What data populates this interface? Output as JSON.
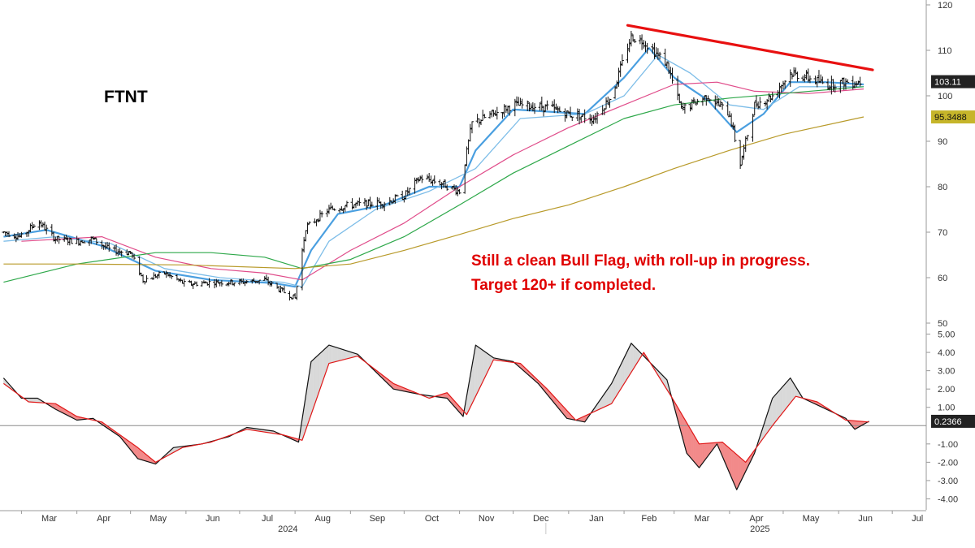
{
  "ticker": "FTNT",
  "annotation_lines": [
    "Still a clean Bull Flag, with roll-up in progress.",
    "Target 120+ if completed."
  ],
  "colors": {
    "bars": "#111111",
    "ma_fast": "#4a9fe0",
    "ma_mid": "#7dbde8",
    "ma_pink": "#e04c8a",
    "ma_green": "#2ea84a",
    "ma_olive": "#b89a2a",
    "trendline": "#e81010",
    "macd_line": "#111111",
    "signal_line": "#e01818",
    "fill_bull": "#d9d9d9",
    "fill_bear": "#f28a8a",
    "tag_price_bg": "#222222",
    "tag_ma_bg": "#c6b52a"
  },
  "chart_data": [
    {
      "type": "ohlc",
      "title": "FTNT",
      "ylim": [
        50,
        120
      ],
      "yticks": [
        50,
        60,
        70,
        80,
        90,
        100,
        110,
        120
      ],
      "x_months": [
        "Mar",
        "Apr",
        "May",
        "Jun",
        "Jul",
        "Aug",
        "Sep",
        "Oct",
        "Nov",
        "Dec",
        "Jan",
        "Feb",
        "Mar",
        "Apr",
        "May",
        "Jun",
        "Jul"
      ],
      "x_years": [
        "2024",
        "2025"
      ],
      "price_path": [
        [
          "2024-02-20",
          70
        ],
        [
          "2024-03-01",
          69
        ],
        [
          "2024-03-10",
          72.5
        ],
        [
          "2024-03-20",
          68.5
        ],
        [
          "2024-04-01",
          68
        ],
        [
          "2024-04-10",
          68.5
        ],
        [
          "2024-04-20",
          66
        ],
        [
          "2024-05-01",
          65.5
        ],
        [
          "2024-05-08",
          59.5
        ],
        [
          "2024-05-20",
          61
        ],
        [
          "2024-06-01",
          58.5
        ],
        [
          "2024-06-15",
          59
        ],
        [
          "2024-07-01",
          59
        ],
        [
          "2024-07-15",
          59.5
        ],
        [
          "2024-07-25",
          57
        ],
        [
          "2024-08-01",
          55.5
        ],
        [
          "2024-08-07",
          71
        ],
        [
          "2024-08-20",
          75
        ],
        [
          "2024-09-01",
          76
        ],
        [
          "2024-09-20",
          76.5
        ],
        [
          "2024-10-01",
          78
        ],
        [
          "2024-10-10",
          82
        ],
        [
          "2024-10-20",
          81
        ],
        [
          "2024-11-01",
          79
        ],
        [
          "2024-11-08",
          94
        ],
        [
          "2024-11-20",
          96
        ],
        [
          "2024-12-01",
          98
        ],
        [
          "2024-12-20",
          97.5
        ],
        [
          "2025-01-01",
          96
        ],
        [
          "2025-01-15",
          95
        ],
        [
          "2025-01-25",
          100
        ],
        [
          "2025-02-05",
          113
        ],
        [
          "2025-02-12",
          112
        ],
        [
          "2025-02-25",
          107
        ],
        [
          "2025-03-05",
          97
        ],
        [
          "2025-03-20",
          100
        ],
        [
          "2025-04-01",
          96
        ],
        [
          "2025-04-07",
          85
        ],
        [
          "2025-04-15",
          98
        ],
        [
          "2025-04-25",
          100
        ],
        [
          "2025-05-05",
          105
        ],
        [
          "2025-05-15",
          104
        ],
        [
          "2025-05-25",
          102.5
        ],
        [
          "2025-06-05",
          103
        ],
        [
          "2025-06-15",
          103.1
        ]
      ],
      "moving_averages": [
        {
          "style": "ma_fast",
          "points": [
            [
              "2024-02-20",
              69
            ],
            [
              "2024-03-15",
              70.5
            ],
            [
              "2024-04-15",
              67
            ],
            [
              "2024-05-15",
              61.5
            ],
            [
              "2024-06-15",
              59.5
            ],
            [
              "2024-07-20",
              58.8
            ],
            [
              "2024-08-01",
              58
            ],
            [
              "2024-08-10",
              66
            ],
            [
              "2024-08-25",
              74
            ],
            [
              "2024-09-20",
              76
            ],
            [
              "2024-10-15",
              80
            ],
            [
              "2024-11-01",
              80
            ],
            [
              "2024-11-10",
              88
            ],
            [
              "2024-12-01",
              97
            ],
            [
              "2025-01-10",
              96
            ],
            [
              "2025-02-01",
              104
            ],
            [
              "2025-02-15",
              110.5
            ],
            [
              "2025-03-01",
              104
            ],
            [
              "2025-03-20",
              99
            ],
            [
              "2025-04-05",
              92
            ],
            [
              "2025-04-20",
              96
            ],
            [
              "2025-05-05",
              103
            ],
            [
              "2025-05-25",
              103
            ],
            [
              "2025-06-15",
              102.5
            ]
          ]
        },
        {
          "style": "ma_mid",
          "points": [
            [
              "2024-02-20",
              68
            ],
            [
              "2024-03-20",
              69
            ],
            [
              "2024-04-20",
              67.5
            ],
            [
              "2024-05-20",
              62
            ],
            [
              "2024-06-20",
              60
            ],
            [
              "2024-07-25",
              59
            ],
            [
              "2024-08-05",
              58
            ],
            [
              "2024-08-20",
              68
            ],
            [
              "2024-09-15",
              75
            ],
            [
              "2024-10-15",
              79
            ],
            [
              "2024-11-10",
              84
            ],
            [
              "2024-12-05",
              95
            ],
            [
              "2025-01-10",
              96
            ],
            [
              "2025-02-01",
              100
            ],
            [
              "2025-02-20",
              109
            ],
            [
              "2025-03-10",
              105
            ],
            [
              "2025-04-01",
              98
            ],
            [
              "2025-04-20",
              97
            ],
            [
              "2025-05-10",
              102
            ],
            [
              "2025-06-15",
              102
            ]
          ]
        },
        {
          "style": "ma_pink",
          "points": [
            [
              "2024-03-01",
              68
            ],
            [
              "2024-04-15",
              69
            ],
            [
              "2024-05-15",
              64.5
            ],
            [
              "2024-06-15",
              62
            ],
            [
              "2024-07-15",
              61
            ],
            [
              "2024-08-05",
              59.5
            ],
            [
              "2024-09-01",
              66
            ],
            [
              "2024-10-01",
              72
            ],
            [
              "2024-11-01",
              80
            ],
            [
              "2024-12-01",
              87
            ],
            [
              "2025-01-01",
              93
            ],
            [
              "2025-02-01",
              98
            ],
            [
              "2025-03-01",
              102.5
            ],
            [
              "2025-03-25",
              103
            ],
            [
              "2025-04-15",
              101
            ],
            [
              "2025-05-15",
              100.5
            ],
            [
              "2025-06-15",
              101.5
            ]
          ]
        },
        {
          "style": "ma_green",
          "points": [
            [
              "2024-02-20",
              59
            ],
            [
              "2024-04-01",
              63
            ],
            [
              "2024-05-15",
              65.5
            ],
            [
              "2024-06-15",
              65.5
            ],
            [
              "2024-07-15",
              64.5
            ],
            [
              "2024-08-05",
              62
            ],
            [
              "2024-09-01",
              64
            ],
            [
              "2024-10-01",
              69
            ],
            [
              "2024-11-01",
              76
            ],
            [
              "2024-12-01",
              83
            ],
            [
              "2025-01-01",
              89
            ],
            [
              "2025-02-01",
              95
            ],
            [
              "2025-03-01",
              98
            ],
            [
              "2025-04-01",
              99.5
            ],
            [
              "2025-05-01",
              100.5
            ],
            [
              "2025-06-15",
              102
            ]
          ]
        },
        {
          "style": "ma_olive",
          "points": [
            [
              "2024-02-20",
              63
            ],
            [
              "2024-04-01",
              63
            ],
            [
              "2024-06-01",
              62.8
            ],
            [
              "2024-08-01",
              62
            ],
            [
              "2024-09-01",
              63
            ],
            [
              "2024-10-01",
              66
            ],
            [
              "2024-11-01",
              69.5
            ],
            [
              "2024-12-01",
              73
            ],
            [
              "2025-01-01",
              76
            ],
            [
              "2025-02-01",
              80
            ],
            [
              "2025-03-01",
              84
            ],
            [
              "2025-04-01",
              88
            ],
            [
              "2025-05-01",
              91.5
            ],
            [
              "2025-06-15",
              95.35
            ]
          ]
        }
      ],
      "trendline": [
        [
          "2025-02-03",
          115.5
        ],
        [
          "2025-06-20",
          105.7
        ]
      ],
      "last_price": "103.11",
      "ma_value": "95.3488"
    },
    {
      "type": "line",
      "ylim": [
        -4.6,
        5.6
      ],
      "yticks": [
        5.0,
        4.0,
        3.0,
        2.0,
        1.0,
        -1.0,
        -2.0,
        -3.0,
        -4.0
      ],
      "ytick_labels": [
        "5.00",
        "4.00",
        "3.00",
        "2.00",
        "1.00",
        "-1.00",
        "-2.00",
        "-3.00",
        "-4.00"
      ],
      "zero_line": 0,
      "series": [
        {
          "style": "macd_line",
          "points": [
            [
              "2024-02-20",
              2.6
            ],
            [
              "2024-03-01",
              1.5
            ],
            [
              "2024-03-10",
              1.5
            ],
            [
              "2024-03-20",
              0.9
            ],
            [
              "2024-04-01",
              0.3
            ],
            [
              "2024-04-10",
              0.4
            ],
            [
              "2024-04-25",
              -0.6
            ],
            [
              "2024-05-05",
              -1.8
            ],
            [
              "2024-05-15",
              -2.1
            ],
            [
              "2024-05-25",
              -1.2
            ],
            [
              "2024-06-10",
              -1.0
            ],
            [
              "2024-06-25",
              -0.6
            ],
            [
              "2024-07-05",
              -0.1
            ],
            [
              "2024-07-20",
              -0.3
            ],
            [
              "2024-08-03",
              -0.9
            ],
            [
              "2024-08-10",
              3.5
            ],
            [
              "2024-08-20",
              4.4
            ],
            [
              "2024-09-05",
              3.9
            ],
            [
              "2024-09-25",
              2.0
            ],
            [
              "2024-10-10",
              1.7
            ],
            [
              "2024-10-25",
              1.5
            ],
            [
              "2024-11-03",
              0.5
            ],
            [
              "2024-11-10",
              4.4
            ],
            [
              "2024-11-20",
              3.7
            ],
            [
              "2024-12-01",
              3.5
            ],
            [
              "2024-12-15",
              2.3
            ],
            [
              "2024-12-31",
              0.4
            ],
            [
              "2025-01-10",
              0.2
            ],
            [
              "2025-01-25",
              2.3
            ],
            [
              "2025-02-05",
              4.5
            ],
            [
              "2025-02-12",
              3.8
            ],
            [
              "2025-02-25",
              2.5
            ],
            [
              "2025-03-08",
              -1.5
            ],
            [
              "2025-03-15",
              -2.3
            ],
            [
              "2025-03-25",
              -1.0
            ],
            [
              "2025-04-05",
              -3.5
            ],
            [
              "2025-04-15",
              -1.5
            ],
            [
              "2025-04-25",
              1.5
            ],
            [
              "2025-05-05",
              2.6
            ],
            [
              "2025-05-12",
              1.5
            ],
            [
              "2025-05-25",
              0.9
            ],
            [
              "2025-06-05",
              0.4
            ],
            [
              "2025-06-10",
              -0.2
            ],
            [
              "2025-06-18",
              0.24
            ]
          ]
        },
        {
          "style": "signal_line",
          "points": [
            [
              "2024-02-20",
              2.3
            ],
            [
              "2024-03-05",
              1.3
            ],
            [
              "2024-03-20",
              1.2
            ],
            [
              "2024-04-01",
              0.5
            ],
            [
              "2024-04-15",
              0.2
            ],
            [
              "2024-05-05",
              -1.2
            ],
            [
              "2024-05-15",
              -2.0
            ],
            [
              "2024-05-30",
              -1.2
            ],
            [
              "2024-06-15",
              -0.9
            ],
            [
              "2024-07-05",
              -0.2
            ],
            [
              "2024-07-25",
              -0.5
            ],
            [
              "2024-08-05",
              -0.8
            ],
            [
              "2024-08-20",
              3.4
            ],
            [
              "2024-09-05",
              3.8
            ],
            [
              "2024-09-25",
              2.3
            ],
            [
              "2024-10-15",
              1.5
            ],
            [
              "2024-10-25",
              1.8
            ],
            [
              "2024-11-05",
              0.6
            ],
            [
              "2024-11-20",
              3.6
            ],
            [
              "2024-12-05",
              3.4
            ],
            [
              "2024-12-20",
              2.0
            ],
            [
              "2025-01-05",
              0.3
            ],
            [
              "2025-01-25",
              1.2
            ],
            [
              "2025-02-12",
              4.0
            ],
            [
              "2025-02-28",
              1.5
            ],
            [
              "2025-03-15",
              -1.0
            ],
            [
              "2025-03-28",
              -0.9
            ],
            [
              "2025-04-10",
              -2.0
            ],
            [
              "2025-04-25",
              0.0
            ],
            [
              "2025-05-08",
              1.6
            ],
            [
              "2025-05-20",
              1.3
            ],
            [
              "2025-06-05",
              0.3
            ],
            [
              "2025-06-18",
              0.2
            ]
          ]
        }
      ],
      "last_value": "0.2366"
    }
  ]
}
